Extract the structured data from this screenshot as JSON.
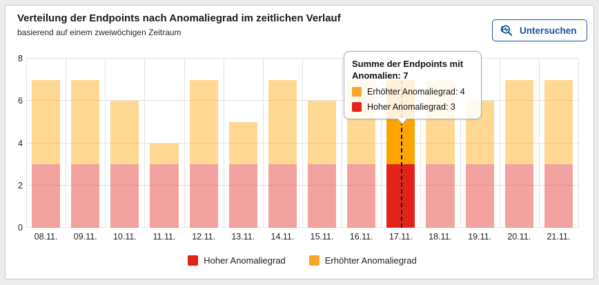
{
  "header": {
    "title": "Verteilung der Endpoints nach Anomaliegrad im zeitlichen Verlauf",
    "subtitle": "basierend auf einem zweiwöchigen Zeitraum",
    "investigate_button": {
      "label": "Untersuchen",
      "icon": "magnifier-pulse-icon",
      "color": "#1553a0"
    }
  },
  "chart_data": {
    "type": "bar",
    "stacked": true,
    "title": "Verteilung der Endpoints nach Anomaliegrad im zeitlichen Verlauf",
    "categories": [
      "08.11.",
      "09.11.",
      "10.11.",
      "11.11.",
      "12.11.",
      "13.11.",
      "14.11.",
      "15.11.",
      "16.11.",
      "17.11.",
      "18.11.",
      "19.11.",
      "20.11.",
      "21.11."
    ],
    "series": [
      {
        "name": "Hoher Anomaliegrad",
        "color": "#e2231a",
        "muted_color": "rgba(226,35,26,0.42)",
        "values": [
          3,
          3,
          3,
          3,
          3,
          3,
          3,
          3,
          3,
          3,
          3,
          3,
          3,
          3
        ]
      },
      {
        "name": "Erhöhter Anomaliegrad",
        "color": "#ffa400",
        "muted_color": "rgba(255,164,0,0.42)",
        "values": [
          4,
          4,
          3,
          1,
          4,
          2,
          4,
          3,
          4,
          4,
          4,
          3,
          4,
          4
        ]
      }
    ],
    "totals": [
      7,
      7,
      6,
      4,
      7,
      5,
      7,
      6,
      7,
      7,
      7,
      6,
      7,
      7
    ],
    "highlighted_category": "17.11.",
    "highlighted_index": 9,
    "xlabel": "",
    "ylabel": "",
    "ylim": [
      0,
      8
    ],
    "yticks": [
      0,
      2,
      4,
      6,
      8
    ],
    "grid": true,
    "legend_position": "bottom"
  },
  "tooltip": {
    "title": "Summe der Endpoints mit Anomalien: 7",
    "items": [
      {
        "label": "Erhöhter Anomaliegrad: 4",
        "color": "#f7a62a"
      },
      {
        "label": "Hoher Anomaliegrad: 3",
        "color": "#e2231a"
      }
    ]
  },
  "legend": {
    "items": [
      {
        "label": "Hoher Anomaliegrad",
        "color": "#e2231a"
      },
      {
        "label": "Erhöhter Anomaliegrad",
        "color": "#f7a62a"
      }
    ]
  }
}
